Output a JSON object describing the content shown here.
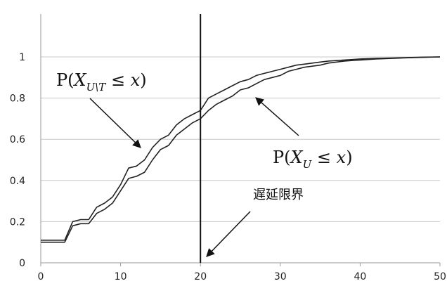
{
  "chart_data": {
    "type": "line",
    "title": "",
    "xlabel": "",
    "ylabel": "",
    "xlim": [
      0,
      50
    ],
    "ylim": [
      0,
      1.1
    ],
    "x_ticks": [
      "0",
      "10",
      "20",
      "30",
      "40",
      "50"
    ],
    "y_ticks": [
      "0",
      "0.2",
      "0.4",
      "0.6",
      "0.8",
      "1"
    ],
    "grid": "horizontal",
    "series": [
      {
        "x": [
          0,
          3,
          4,
          5,
          6,
          7,
          8,
          9,
          10,
          11,
          12,
          13,
          14,
          15,
          16,
          17,
          18,
          19,
          20,
          21,
          22,
          23,
          24,
          25,
          26,
          27,
          28,
          29,
          30,
          31,
          32,
          33,
          34,
          35,
          36,
          38,
          40,
          42,
          44,
          46,
          48,
          50
        ],
        "values": [
          0.11,
          0.11,
          0.2,
          0.21,
          0.21,
          0.27,
          0.29,
          0.32,
          0.38,
          0.46,
          0.47,
          0.5,
          0.56,
          0.6,
          0.62,
          0.67,
          0.7,
          0.72,
          0.74,
          0.8,
          0.82,
          0.84,
          0.86,
          0.88,
          0.89,
          0.91,
          0.92,
          0.93,
          0.94,
          0.95,
          0.96,
          0.965,
          0.97,
          0.975,
          0.98,
          0.985,
          0.99,
          0.993,
          0.995,
          0.997,
          0.999,
          1.0
        ],
        "color": "#222222"
      },
      {
        "x": [
          0,
          3,
          4,
          5,
          6,
          7,
          8,
          9,
          10,
          11,
          12,
          13,
          14,
          15,
          16,
          17,
          18,
          19,
          20,
          21,
          22,
          23,
          24,
          25,
          26,
          27,
          28,
          29,
          30,
          31,
          32,
          33,
          34,
          35,
          36,
          38,
          40,
          42,
          44,
          46,
          48,
          50
        ],
        "values": [
          0.1,
          0.1,
          0.18,
          0.19,
          0.19,
          0.24,
          0.26,
          0.29,
          0.35,
          0.41,
          0.42,
          0.44,
          0.5,
          0.55,
          0.57,
          0.62,
          0.65,
          0.68,
          0.7,
          0.74,
          0.77,
          0.79,
          0.81,
          0.84,
          0.85,
          0.87,
          0.89,
          0.9,
          0.91,
          0.93,
          0.94,
          0.95,
          0.955,
          0.96,
          0.97,
          0.98,
          0.985,
          0.99,
          0.993,
          0.996,
          0.998,
          1.0
        ],
        "color": "#222222"
      }
    ],
    "vertical_line_x": 20,
    "annotations": [
      {
        "text": "P(X_{U\\T} ≤ x)"
      },
      {
        "text": "P(X_U ≤ x)"
      },
      {
        "text": "遅延限界"
      }
    ]
  },
  "colors": {
    "background": "#ffffff",
    "grid": "#c8c8c8",
    "line": "#222222",
    "arrow": "#111111"
  }
}
